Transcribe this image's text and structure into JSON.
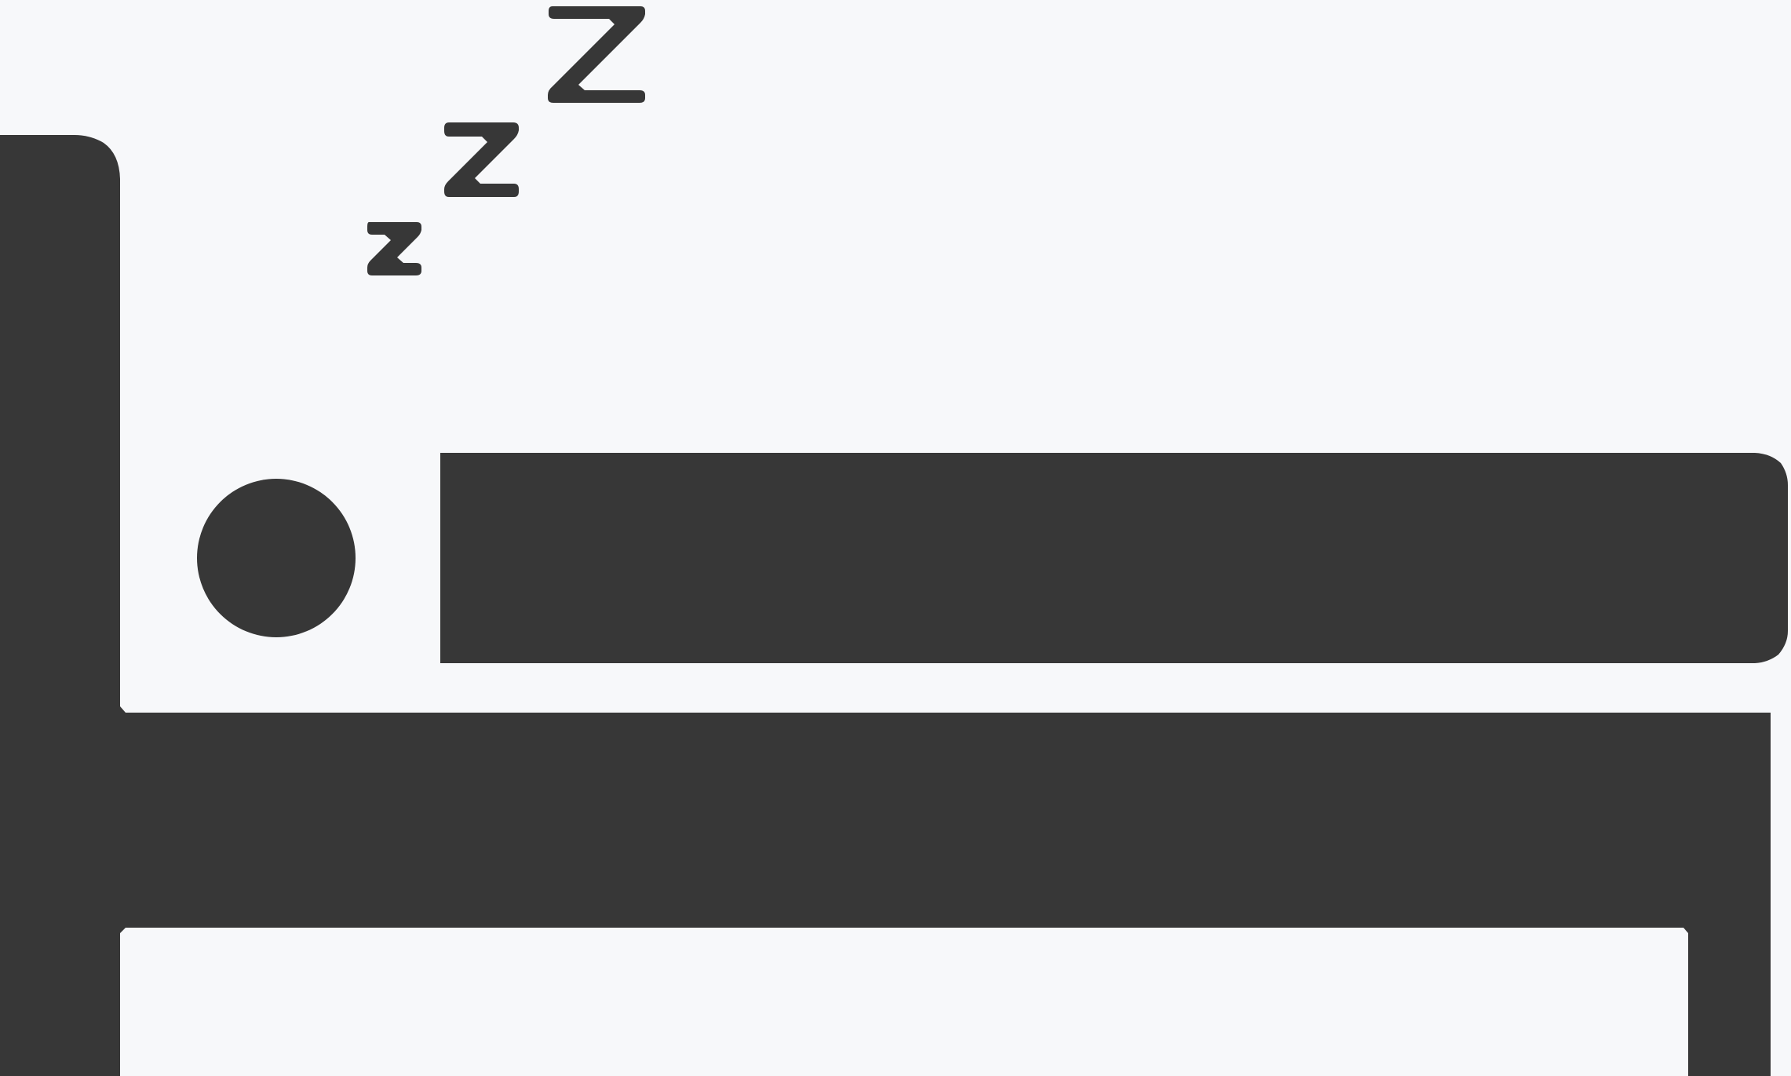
{
  "illustration": {
    "icon_name": "sleeping-in-bed-icon",
    "parts": {
      "headboard": "headboard-icon",
      "head": "sleeper-head-icon",
      "body": "sleeper-body-icon",
      "mattress": "mattress-icon",
      "footboard": "footboard-icon",
      "sleep_glyphs": [
        "small-z-icon",
        "medium-z-icon",
        "large-z-icon"
      ]
    }
  },
  "colors": {
    "background": "#f7f8fa",
    "foreground": "#373737"
  }
}
